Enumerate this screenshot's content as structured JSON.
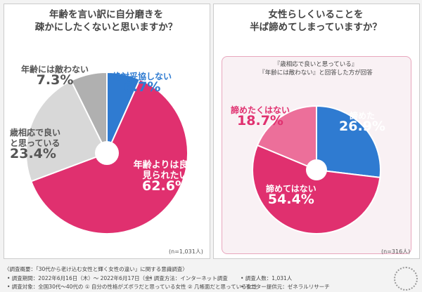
{
  "chart_data": [
    {
      "type": "pie",
      "title": "年齢を言い訳に自分磨きを\n疎かにしたくないと思いますか？",
      "n": "(n=1,031人)",
      "categories": [
        "絶対妥協しない",
        "年齢よりは良く見られたい",
        "歳相応で良いと思っている",
        "年齢には敵わない"
      ],
      "values": [
        6.7,
        62.6,
        23.4,
        7.3
      ],
      "value_labels": [
        "6.7%",
        "62.6%",
        "23.4%",
        "7.3%"
      ],
      "colors": [
        "#2f7bd1",
        "#e0306f",
        "#d8d8d8",
        "#b0b0b0"
      ]
    },
    {
      "type": "pie",
      "title": "女性らしくいることを\n半ば諦めてしまっていますか？",
      "subtitle": "『歳相応で良いと思っている』\n『年齢には敵わない』と回答した方が回答",
      "n": "(n=316人)",
      "categories": [
        "諦めた",
        "諦めてはない",
        "諦めたくはない"
      ],
      "values": [
        26.9,
        54.4,
        18.7
      ],
      "value_labels": [
        "26.9%",
        "54.4%",
        "18.7%"
      ],
      "colors": [
        "#2f7bd1",
        "#e0306f",
        "#ec6f9a"
      ]
    }
  ],
  "footer": {
    "line1": "〈調査概要：「30代から老け込む女性と輝く女性の違い」に関する意識調査〉",
    "period": "• 調査期間：2022年6月16日（木）～ 2022年6月17日（金）",
    "method": "• 調査方法：インターネット調査",
    "count": "• 調査人数：1,031人",
    "target": "• 調査対象：全国30代～40代の ① 自分の性格がズボラだと思っている女性 ② 几帳面だと思っている女性",
    "monitor": "• モニター提供元：ゼネラルリサーチ"
  }
}
